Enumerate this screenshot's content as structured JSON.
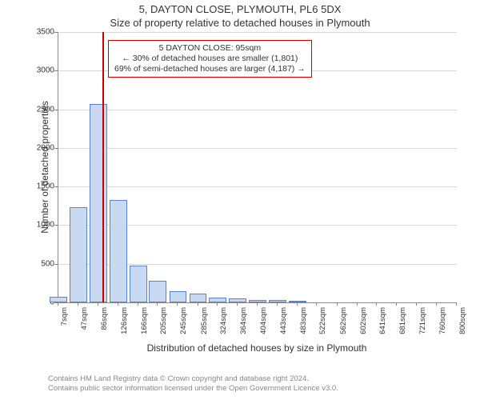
{
  "header": {
    "address": "5, DAYTON CLOSE, PLYMOUTH, PL6 5DX",
    "subtitle": "Size of property relative to detached houses in Plymouth"
  },
  "chart": {
    "type": "histogram",
    "ylabel": "Number of detached properties",
    "xlabel": "Distribution of detached houses by size in Plymouth",
    "ylim": [
      0,
      3500
    ],
    "ytick_step": 500,
    "xticks": [
      "7sqm",
      "47sqm",
      "86sqm",
      "126sqm",
      "166sqm",
      "205sqm",
      "245sqm",
      "285sqm",
      "324sqm",
      "364sqm",
      "404sqm",
      "443sqm",
      "483sqm",
      "522sqm",
      "562sqm",
      "602sqm",
      "641sqm",
      "681sqm",
      "721sqm",
      "760sqm",
      "800sqm"
    ],
    "bars": [
      {
        "x": 7,
        "value": 70
      },
      {
        "x": 47,
        "value": 1230
      },
      {
        "x": 86,
        "value": 2570
      },
      {
        "x": 126,
        "value": 1330
      },
      {
        "x": 166,
        "value": 480
      },
      {
        "x": 205,
        "value": 280
      },
      {
        "x": 245,
        "value": 150
      },
      {
        "x": 285,
        "value": 110
      },
      {
        "x": 324,
        "value": 60
      },
      {
        "x": 364,
        "value": 55
      },
      {
        "x": 404,
        "value": 35
      },
      {
        "x": 443,
        "value": 30
      },
      {
        "x": 483,
        "value": 20
      },
      {
        "x": 522,
        "value": 0
      },
      {
        "x": 562,
        "value": 0
      },
      {
        "x": 602,
        "value": 0
      },
      {
        "x": 641,
        "value": 0
      },
      {
        "x": 681,
        "value": 0
      },
      {
        "x": 721,
        "value": 0
      },
      {
        "x": 760,
        "value": 0
      },
      {
        "x": 800,
        "value": 0
      }
    ],
    "bar_fill_color": "#c9d9f2",
    "bar_border_color": "#5b83c9",
    "background_color": "#ffffff",
    "grid_color": "#d8d8d8",
    "axis_color": "#888888",
    "bar_gap_ratio": 0.92,
    "marker": {
      "x": 95,
      "color": "#cc0000",
      "width": 2
    },
    "annotation": {
      "border_color": "#cc0000",
      "lines": [
        "5 DAYTON CLOSE: 95sqm",
        "← 30% of detached houses are smaller (1,801)",
        "69% of semi-detached houses are larger (4,187) →"
      ]
    }
  },
  "footer": {
    "line1": "Contains HM Land Registry data © Crown copyright and database right 2024.",
    "line2": "Contains public sector information licensed under the Open Government Licence v3.0."
  }
}
